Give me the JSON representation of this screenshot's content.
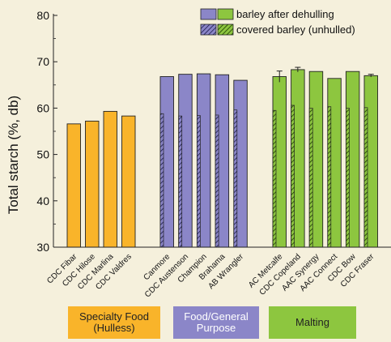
{
  "chart_data": {
    "type": "bar",
    "ylabel": "Total starch (%, db)",
    "ylim": [
      30,
      80
    ],
    "yticks": [
      30,
      40,
      50,
      60,
      70,
      80
    ],
    "categories": [
      "CDC Fibar",
      "CDC Hilose",
      "CDC Marlina",
      "CDC Valdres",
      "Canmore",
      "CDC Austenson",
      "Champion",
      "Brahama",
      "AB Wrangler",
      "AC Metcalfe",
      "CDC Copeland",
      "AAC Synergy",
      "AAC Connect",
      "CDC Bow",
      "CDC Fraser"
    ],
    "series": [
      {
        "name": "barley after dehulling",
        "values": [
          56.6,
          57.2,
          59.3,
          58.3,
          66.8,
          67.3,
          67.4,
          67.2,
          66.0,
          66.8,
          68.3,
          67.9,
          66.4,
          67.9,
          67.0
        ],
        "errors": [
          0,
          0,
          0,
          0,
          0,
          0,
          0,
          0,
          0,
          1.2,
          0.5,
          0,
          0,
          0,
          0.3
        ]
      },
      {
        "name": "covered barley (unhulled)",
        "values": [
          null,
          null,
          null,
          null,
          58.8,
          58.3,
          58.4,
          58.5,
          59.6,
          59.5,
          60.6,
          60.0,
          60.3,
          60.0,
          60.1
        ]
      }
    ],
    "groups": [
      {
        "label_line1": "Specialty Food",
        "label_line2": "(Hulless)",
        "color": "#f9b42a",
        "text_color": "#222222"
      },
      {
        "label_line1": "Food/General",
        "label_line2": "Purpose",
        "color": "#8b86c8",
        "text_color": "#ffffff"
      },
      {
        "label_line1": "Malting",
        "label_line2": "",
        "color": "#8dc63f",
        "text_color": "#222222"
      }
    ],
    "colors": {
      "specialty": "#f9b42a",
      "food": "#8b86c8",
      "malting": "#8dc63f",
      "background": "#f5f0dc"
    },
    "legend_position": "top-right",
    "grid": false
  }
}
